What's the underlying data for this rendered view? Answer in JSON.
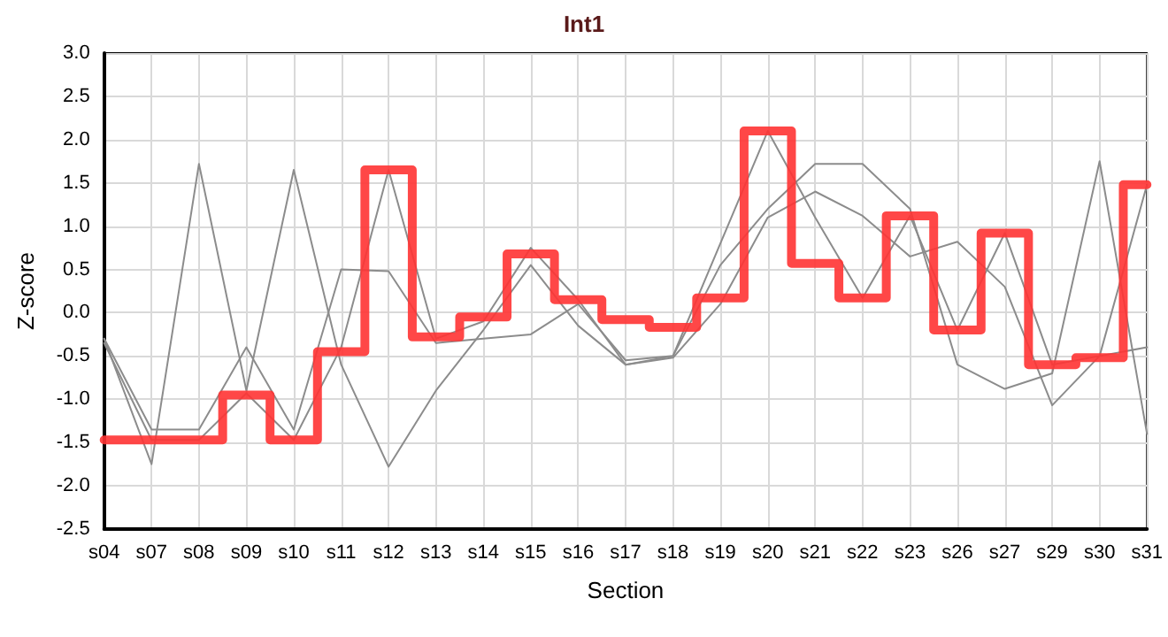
{
  "chart_data": {
    "type": "step",
    "title": "Int1",
    "xlabel": "Section",
    "ylabel": "Z-score",
    "categories": [
      "s04",
      "s07",
      "s08",
      "s09",
      "s10",
      "s11",
      "s12",
      "s13",
      "s14",
      "s15",
      "s16",
      "s17",
      "s18",
      "s19",
      "s20",
      "s21",
      "s22",
      "s23",
      "s26",
      "s27",
      "s29",
      "s30",
      "s31"
    ],
    "series": [
      {
        "type": "line",
        "color": "#8c8c8c",
        "values": [
          -0.3,
          -1.75,
          1.72,
          -0.9,
          1.65,
          -0.6,
          -1.78,
          -0.9,
          -0.2,
          0.55,
          -0.15,
          -0.6,
          -0.52,
          0.1,
          1.1,
          1.4,
          1.12,
          0.65,
          0.82,
          0.3,
          -1.07,
          -0.5,
          -0.4
        ]
      },
      {
        "type": "line",
        "color": "#8c8c8c",
        "values": [
          -0.3,
          -1.35,
          -1.35,
          -0.4,
          -1.35,
          0.5,
          0.48,
          -0.35,
          -0.3,
          -0.25,
          0.1,
          -0.55,
          -0.5,
          0.55,
          1.2,
          1.72,
          1.72,
          1.2,
          -0.6,
          -0.88,
          -0.7,
          1.75,
          -1.4
        ]
      },
      {
        "type": "line",
        "color": "#8c8c8c",
        "values": [
          -0.35,
          -1.47,
          -1.47,
          -0.93,
          -1.47,
          -0.4,
          1.65,
          -0.3,
          -0.1,
          0.75,
          0.15,
          -0.6,
          -0.5,
          0.8,
          2.1,
          1.1,
          0.17,
          1.12,
          -0.2,
          0.92,
          -0.6,
          -0.5,
          1.48
        ]
      },
      {
        "type": "step",
        "color": "#ff3333",
        "values": [
          -1.47,
          -1.47,
          -1.47,
          -0.95,
          -1.47,
          -0.45,
          1.65,
          -0.28,
          -0.05,
          0.68,
          0.15,
          -0.08,
          -0.17,
          0.17,
          2.1,
          0.57,
          0.17,
          1.12,
          -0.2,
          0.92,
          -0.6,
          -0.52,
          1.48
        ]
      }
    ],
    "ylim": [
      -2.5,
      3.0
    ],
    "yticks": [
      {
        "value": -2.5,
        "label": "-2.5"
      },
      {
        "value": -2,
        "label": "-2.0"
      },
      {
        "value": -1.5,
        "label": "-1.5"
      },
      {
        "value": -1,
        "label": "-1.0"
      },
      {
        "value": -0.5,
        "label": "-0.5"
      },
      {
        "value": 0,
        "label": "0.0"
      },
      {
        "value": 0.5,
        "label": "0.5"
      },
      {
        "value": 1,
        "label": "1.0"
      },
      {
        "value": 1.5,
        "label": "1.5"
      },
      {
        "value": 2,
        "label": "2.0"
      },
      {
        "value": 2.5,
        "label": "2.5"
      },
      {
        "value": 3,
        "label": "3.0"
      }
    ],
    "grid": true,
    "marker": "none",
    "line_style": "solid"
  }
}
